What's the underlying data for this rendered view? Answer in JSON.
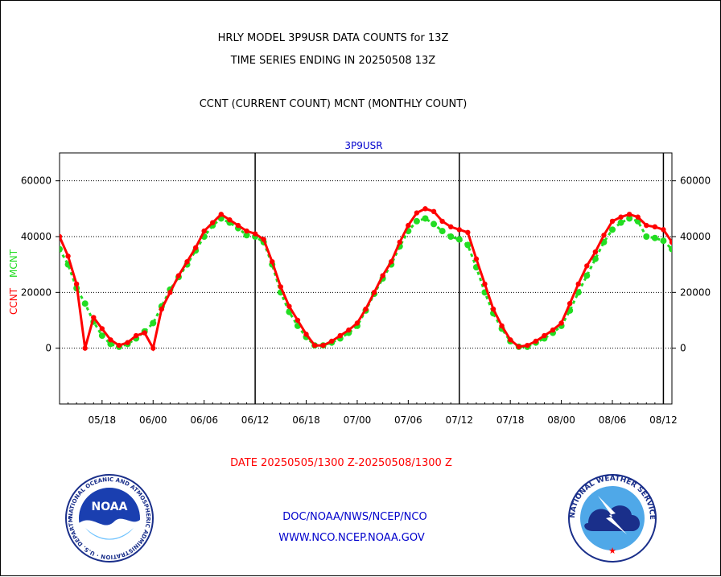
{
  "header": {
    "title_line1": "HRLY MODEL 3P9USR DATA COUNTS for 13Z",
    "title_line2": "TIME SERIES ENDING IN 20250508 13Z",
    "subtitle": "CCNT (CURRENT COUNT) MCNT (MONTHLY COUNT)"
  },
  "footer": {
    "date_range": "DATE 20250505/1300 Z-20250508/1300 Z",
    "org": "DOC/NOAA/NWS/NCEP/NCO",
    "url": "WWW.NCO.NCEP.NOAA.GOV"
  },
  "logos": {
    "noaa_text": "NOAA",
    "noaa_ring_text": "NATIONAL OCEANIC AND ATMOSPHERIC ADMINISTRATION · U.S. DEPARTMENT OF COMMERCE",
    "nws_ring_text": "NATIONAL WEATHER SERVICE"
  },
  "colors": {
    "ccnt": "#ff0000",
    "mcnt": "#22dd22",
    "title": "#000000",
    "series_label": "#0000cc",
    "footer_date": "#ff0000",
    "footer_links": "#0000cc"
  },
  "chart_data": {
    "type": "line",
    "series_label": "3P9USR",
    "ylabel_ccnt": "CCNT",
    "ylabel_mcnt": "MCNT",
    "ylim": [
      -20000,
      70000
    ],
    "yticks": [
      0,
      20000,
      40000,
      60000
    ],
    "ytick_labels": [
      "0",
      "20000",
      "40000",
      "60000"
    ],
    "xticks": [
      "05/18",
      "06/00",
      "06/06",
      "06/12",
      "06/18",
      "07/00",
      "07/06",
      "07/12",
      "07/18",
      "08/00",
      "08/06",
      "08/12"
    ],
    "xtick_hours": [
      5,
      11,
      17,
      23,
      29,
      35,
      41,
      47,
      53,
      59,
      65,
      71
    ],
    "xlim": [
      0,
      72
    ],
    "day_boundaries": [
      23,
      47,
      71
    ],
    "grid": "horizontal dotted",
    "series": [
      {
        "name": "CCNT",
        "color": "#ff0000",
        "x": [
          0,
          1,
          2,
          3,
          4,
          5,
          6,
          7,
          8,
          9,
          10,
          11,
          12,
          13,
          14,
          15,
          16,
          17,
          18,
          19,
          20,
          21,
          22,
          23,
          24,
          25,
          26,
          27,
          28,
          29,
          30,
          31,
          32,
          33,
          34,
          35,
          36,
          37,
          38,
          39,
          40,
          41,
          42,
          43,
          44,
          45,
          46,
          47,
          48,
          49,
          50,
          51,
          52,
          53,
          54,
          55,
          56,
          57,
          58,
          59,
          60,
          61,
          62,
          63,
          64,
          65,
          66,
          67,
          68,
          69,
          70,
          71,
          72
        ],
        "values": [
          40000,
          33000,
          23000,
          0,
          11000,
          7000,
          3000,
          1000,
          2000,
          4500,
          5500,
          0,
          14000,
          20000,
          26000,
          31000,
          36000,
          42000,
          45000,
          48000,
          46000,
          44000,
          42000,
          41000,
          39000,
          31000,
          22000,
          15000,
          10000,
          5000,
          1000,
          1000,
          2500,
          4500,
          6500,
          9000,
          14000,
          20000,
          26000,
          31000,
          38000,
          44000,
          48500,
          50000,
          49000,
          45500,
          43500,
          42500,
          41500,
          32000,
          23000,
          14000,
          8000,
          3000,
          500,
          1000,
          2500,
          4500,
          6500,
          9000,
          16000,
          23000,
          29500,
          34500,
          40500,
          45500,
          47000,
          48000,
          47000,
          44000,
          43500,
          42500,
          38000
        ]
      },
      {
        "name": "MCNT",
        "color": "#22dd22",
        "x": [
          0,
          1,
          2,
          3,
          4,
          5,
          6,
          7,
          8,
          9,
          10,
          11,
          12,
          13,
          14,
          15,
          16,
          17,
          18,
          19,
          20,
          21,
          22,
          23,
          24,
          25,
          26,
          27,
          28,
          29,
          30,
          31,
          32,
          33,
          34,
          35,
          36,
          37,
          38,
          39,
          40,
          41,
          42,
          43,
          44,
          45,
          46,
          47,
          48,
          49,
          50,
          51,
          52,
          53,
          54,
          55,
          56,
          57,
          58,
          59,
          60,
          61,
          62,
          63,
          64,
          65,
          66,
          67,
          68,
          69,
          70,
          71,
          72
        ],
        "values": [
          35500,
          30000,
          21500,
          16000,
          9500,
          4500,
          1500,
          500,
          1500,
          3500,
          6000,
          9000,
          15000,
          21000,
          25500,
          30000,
          35000,
          40000,
          44000,
          46500,
          45000,
          43000,
          40500,
          40000,
          38000,
          30000,
          20000,
          13000,
          8000,
          4000,
          1000,
          1000,
          2000,
          3500,
          5500,
          8000,
          13500,
          19500,
          25000,
          30000,
          36500,
          42000,
          45500,
          46500,
          44500,
          42000,
          40000,
          39000,
          37000,
          29000,
          20000,
          12500,
          7000,
          2500,
          500,
          500,
          2000,
          3500,
          5500,
          8000,
          13500,
          20000,
          26000,
          32000,
          38000,
          42500,
          45000,
          46500,
          45500,
          40000,
          39500,
          38500,
          35500
        ]
      }
    ]
  }
}
